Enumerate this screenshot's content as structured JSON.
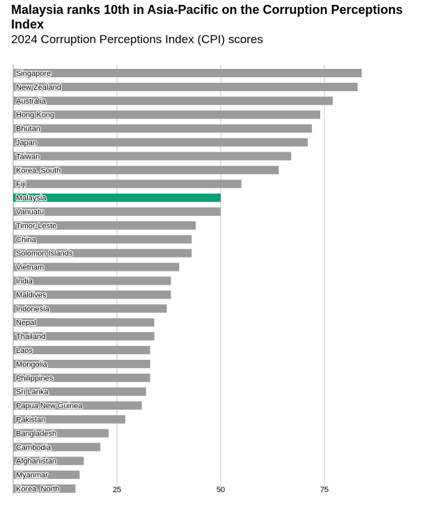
{
  "title": "Malaysia ranks 10th in Asia-Pacific on the Corruption Perceptions Index",
  "subtitle": "2024 Corruption Perceptions Index (CPI) scores",
  "colors": {
    "bar": "#9b9b9b",
    "highlight": "#0c9e74",
    "grid": "#c8c8c8",
    "axis": "#999999"
  },
  "chart_data": {
    "type": "bar",
    "orientation": "horizontal",
    "categories": [
      "Singapore",
      "New Zealand",
      "Australia",
      "Hong Kong",
      "Bhutan",
      "Japan",
      "Taiwan",
      "Korea, South",
      "Fiji",
      "Malaysia",
      "Vanuatu",
      "Timor-Leste",
      "China",
      "Solomon Islands",
      "Vietnam",
      "India",
      "Maldives",
      "Indonesia",
      "Nepal",
      "Thailand",
      "Laos",
      "Mongolia",
      "Philippines",
      "Sri Lanka",
      "Papua New Guinea",
      "Pakistan",
      "Bangladesh",
      "Cambodia",
      "Afghanistan",
      "Myanmar",
      "Korea, North"
    ],
    "values": [
      84,
      83,
      77,
      74,
      72,
      71,
      67,
      64,
      55,
      50,
      50,
      44,
      43,
      43,
      40,
      38,
      38,
      37,
      34,
      34,
      33,
      33,
      33,
      32,
      31,
      27,
      23,
      21,
      17,
      16,
      15
    ],
    "highlight": "Malaysia",
    "xticks": [
      25,
      50,
      75
    ],
    "xlim": [
      0,
      100
    ],
    "grid": true
  }
}
